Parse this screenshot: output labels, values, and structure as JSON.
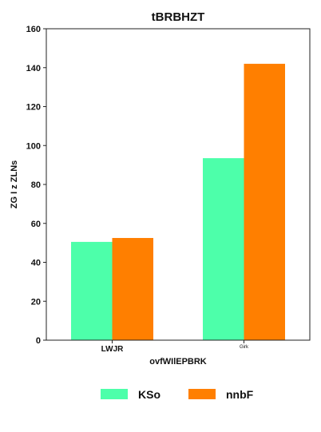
{
  "chart_data": {
    "type": "bar",
    "title": "tBRBHZT",
    "xlabel": "ovfWIlEPBRK",
    "ylabel": "ZG I z ZLNs",
    "categories": [
      "LWJR",
      "Girk"
    ],
    "series": [
      {
        "name": "KSo",
        "color": "#4dffaa",
        "values": [
          50.5,
          93.5
        ]
      },
      {
        "name": "nnbF",
        "color": "#ff7f00",
        "values": [
          52.5,
          142
        ]
      }
    ],
    "ylim": [
      0,
      160
    ],
    "yticks": [
      0,
      20,
      40,
      60,
      80,
      100,
      120,
      140,
      160
    ],
    "grid": false,
    "legend_position": "bottom-center"
  }
}
